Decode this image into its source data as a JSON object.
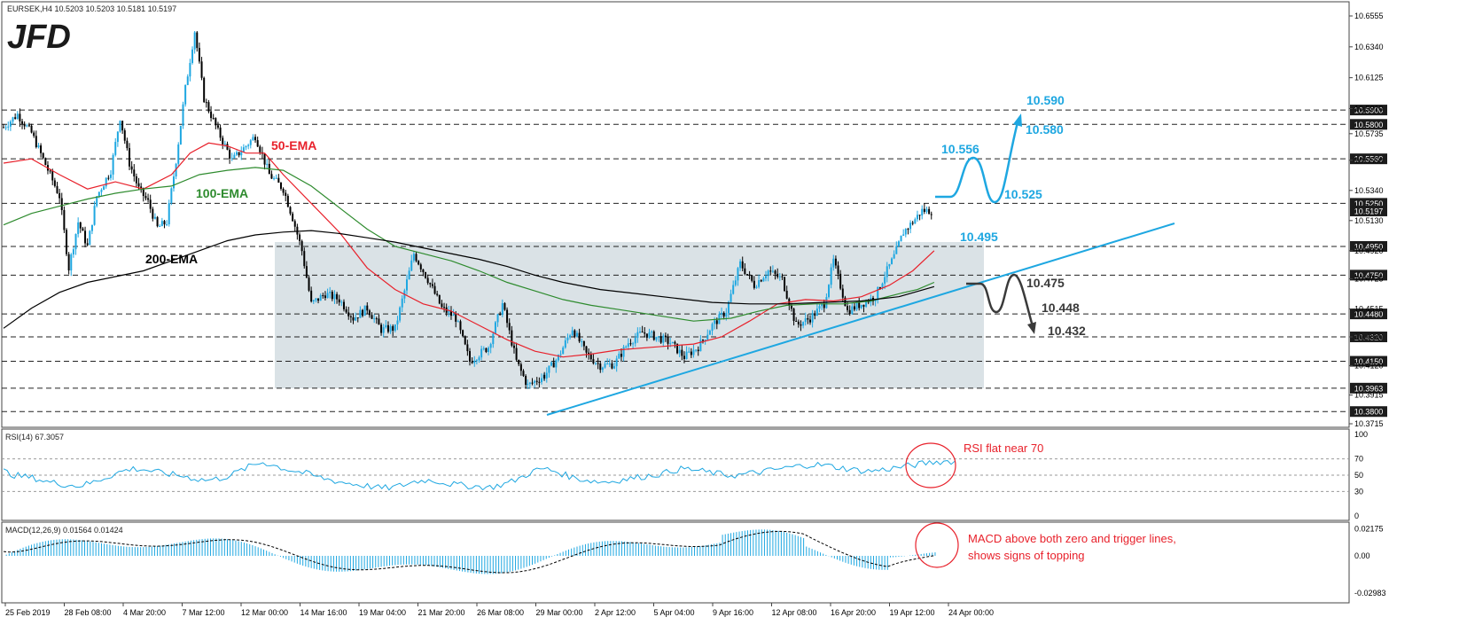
{
  "chart_data": {
    "type": "line",
    "title": "EURSEK,H4 10.5203 10.5203 10.5181 10.5197",
    "logo": "JFD",
    "x_tick_labels": [
      "25 Feb 2019",
      "28 Feb 08:00",
      "4 Mar 20:00",
      "7 Mar 12:00",
      "12 Mar 00:00",
      "14 Mar 16:00",
      "19 Mar 04:00",
      "21 Mar 20:00",
      "26 Mar 08:00",
      "29 Mar 00:00",
      "2 Apr 12:00",
      "5 Apr 04:00",
      "9 Apr 16:00",
      "12 Apr 08:00",
      "16 Apr 20:00",
      "19 Apr 12:00",
      "24 Apr 00:00"
    ],
    "price_axis_ticks": [
      "10.6555",
      "10.6340",
      "10.6125",
      "10.5910",
      "10.5735",
      "10.5550",
      "10.5340",
      "10.5130",
      "10.4920",
      "10.4725",
      "10.4515",
      "10.4320",
      "10.4120",
      "10.3915",
      "10.3715"
    ],
    "ylim": [
      10.3715,
      10.6555
    ],
    "level_badges": [
      "10.5900",
      "10.5800",
      "10.5560",
      "10.5250",
      "10.5197",
      "10.4950",
      "10.4750",
      "10.4480",
      "10.4320",
      "10.4150",
      "10.3963",
      "10.3800"
    ],
    "price_series": [
      [
        0,
        10.578
      ],
      [
        15,
        10.587
      ],
      [
        30,
        10.574
      ],
      [
        45,
        10.552
      ],
      [
        60,
        10.53
      ],
      [
        70,
        10.48
      ],
      [
        80,
        10.512
      ],
      [
        90,
        10.495
      ],
      [
        100,
        10.53
      ],
      [
        115,
        10.548
      ],
      [
        125,
        10.585
      ],
      [
        135,
        10.553
      ],
      [
        145,
        10.535
      ],
      [
        155,
        10.526
      ],
      [
        165,
        10.508
      ],
      [
        175,
        10.512
      ],
      [
        185,
        10.555
      ],
      [
        195,
        10.605
      ],
      [
        205,
        10.645
      ],
      [
        215,
        10.598
      ],
      [
        230,
        10.575
      ],
      [
        245,
        10.555
      ],
      [
        260,
        10.565
      ],
      [
        270,
        10.572
      ],
      [
        285,
        10.545
      ],
      [
        300,
        10.535
      ],
      [
        310,
        10.515
      ],
      [
        320,
        10.492
      ],
      [
        330,
        10.455
      ],
      [
        345,
        10.462
      ],
      [
        360,
        10.458
      ],
      [
        375,
        10.445
      ],
      [
        390,
        10.452
      ],
      [
        405,
        10.437
      ],
      [
        420,
        10.438
      ],
      [
        440,
        10.49
      ],
      [
        455,
        10.472
      ],
      [
        470,
        10.452
      ],
      [
        485,
        10.445
      ],
      [
        500,
        10.415
      ],
      [
        520,
        10.425
      ],
      [
        535,
        10.455
      ],
      [
        550,
        10.415
      ],
      [
        562,
        10.398
      ],
      [
        580,
        10.405
      ],
      [
        595,
        10.418
      ],
      [
        610,
        10.438
      ],
      [
        625,
        10.42
      ],
      [
        640,
        10.412
      ],
      [
        655,
        10.413
      ],
      [
        670,
        10.428
      ],
      [
        685,
        10.435
      ],
      [
        700,
        10.432
      ],
      [
        715,
        10.428
      ],
      [
        730,
        10.418
      ],
      [
        745,
        10.425
      ],
      [
        760,
        10.44
      ],
      [
        775,
        10.45
      ],
      [
        790,
        10.483
      ],
      [
        805,
        10.468
      ],
      [
        820,
        10.478
      ],
      [
        835,
        10.472
      ],
      [
        850,
        10.44
      ],
      [
        865,
        10.445
      ],
      [
        880,
        10.455
      ],
      [
        890,
        10.485
      ],
      [
        905,
        10.45
      ],
      [
        920,
        10.455
      ],
      [
        935,
        10.46
      ],
      [
        945,
        10.475
      ],
      [
        955,
        10.488
      ],
      [
        965,
        10.505
      ],
      [
        975,
        10.512
      ],
      [
        985,
        10.52
      ],
      [
        997,
        10.5197
      ]
    ],
    "series": [
      {
        "name": "50-EMA",
        "color": "#e8212b",
        "points": [
          [
            0,
            10.553
          ],
          [
            30,
            10.556
          ],
          [
            60,
            10.545
          ],
          [
            90,
            10.535
          ],
          [
            120,
            10.54
          ],
          [
            150,
            10.535
          ],
          [
            180,
            10.545
          ],
          [
            200,
            10.56
          ],
          [
            220,
            10.567
          ],
          [
            240,
            10.565
          ],
          [
            260,
            10.56
          ],
          [
            280,
            10.56
          ],
          [
            300,
            10.545
          ],
          [
            330,
            10.525
          ],
          [
            360,
            10.505
          ],
          [
            390,
            10.48
          ],
          [
            420,
            10.465
          ],
          [
            450,
            10.455
          ],
          [
            480,
            10.45
          ],
          [
            510,
            10.44
          ],
          [
            540,
            10.43
          ],
          [
            570,
            10.422
          ],
          [
            600,
            10.418
          ],
          [
            630,
            10.42
          ],
          [
            660,
            10.423
          ],
          [
            700,
            10.425
          ],
          [
            740,
            10.427
          ],
          [
            770,
            10.432
          ],
          [
            800,
            10.443
          ],
          [
            830,
            10.455
          ],
          [
            860,
            10.458
          ],
          [
            890,
            10.457
          ],
          [
            920,
            10.46
          ],
          [
            950,
            10.468
          ],
          [
            975,
            10.478
          ],
          [
            998,
            10.492
          ]
        ]
      },
      {
        "name": "100-EMA",
        "color": "#2e8b2e",
        "points": [
          [
            0,
            10.51
          ],
          [
            30,
            10.518
          ],
          [
            60,
            10.523
          ],
          [
            90,
            10.528
          ],
          [
            120,
            10.532
          ],
          [
            150,
            10.535
          ],
          [
            180,
            10.537
          ],
          [
            210,
            10.545
          ],
          [
            240,
            10.548
          ],
          [
            270,
            10.55
          ],
          [
            300,
            10.548
          ],
          [
            330,
            10.537
          ],
          [
            360,
            10.522
          ],
          [
            390,
            10.507
          ],
          [
            420,
            10.495
          ],
          [
            450,
            10.49
          ],
          [
            480,
            10.485
          ],
          [
            510,
            10.478
          ],
          [
            540,
            10.47
          ],
          [
            570,
            10.464
          ],
          [
            600,
            10.458
          ],
          [
            630,
            10.454
          ],
          [
            660,
            10.451
          ],
          [
            700,
            10.447
          ],
          [
            740,
            10.443
          ],
          [
            780,
            10.445
          ],
          [
            810,
            10.45
          ],
          [
            840,
            10.454
          ],
          [
            870,
            10.455
          ],
          [
            900,
            10.455
          ],
          [
            930,
            10.457
          ],
          [
            960,
            10.462
          ],
          [
            980,
            10.465
          ],
          [
            998,
            10.47
          ]
        ]
      },
      {
        "name": "200-EMA",
        "color": "#000000",
        "points": [
          [
            0,
            10.438
          ],
          [
            30,
            10.452
          ],
          [
            60,
            10.463
          ],
          [
            90,
            10.47
          ],
          [
            120,
            10.474
          ],
          [
            150,
            10.478
          ],
          [
            180,
            10.485
          ],
          [
            210,
            10.492
          ],
          [
            240,
            10.499
          ],
          [
            270,
            10.503
          ],
          [
            300,
            10.505
          ],
          [
            330,
            10.506
          ],
          [
            360,
            10.504
          ],
          [
            390,
            10.501
          ],
          [
            420,
            10.498
          ],
          [
            450,
            10.494
          ],
          [
            480,
            10.49
          ],
          [
            510,
            10.486
          ],
          [
            540,
            10.481
          ],
          [
            570,
            10.475
          ],
          [
            600,
            10.47
          ],
          [
            640,
            10.465
          ],
          [
            680,
            10.462
          ],
          [
            720,
            10.459
          ],
          [
            760,
            10.456
          ],
          [
            800,
            10.455
          ],
          [
            840,
            10.455
          ],
          [
            880,
            10.456
          ],
          [
            920,
            10.457
          ],
          [
            960,
            10.46
          ],
          [
            998,
            10.467
          ]
        ]
      }
    ],
    "ema_labels": [
      "50-EMA",
      "100-EMA",
      "200-EMA"
    ],
    "scenario_labels": {
      "up": [
        "10.590",
        "10.580",
        "10.556",
        "10.525",
        "10.495"
      ],
      "down": [
        "10.475",
        "10.448",
        "10.432"
      ]
    },
    "rsi": {
      "title": "RSI(14) 67.3057",
      "ticks": [
        "100",
        "70",
        "50",
        "30",
        "0"
      ],
      "values": [
        55,
        50,
        48,
        46,
        42,
        40,
        38,
        37,
        40,
        45,
        50,
        55,
        58,
        57,
        54,
        52,
        50,
        48,
        45,
        44,
        46,
        50,
        56,
        62,
        66,
        62,
        58,
        55,
        52,
        48,
        45,
        42,
        40,
        38,
        36,
        34,
        35,
        38,
        42,
        44,
        43,
        40,
        38,
        37,
        36,
        35,
        38,
        42,
        48,
        55,
        58,
        55,
        50,
        46,
        44,
        42,
        42,
        44,
        46,
        48,
        50,
        52,
        56,
        58,
        56,
        54,
        52,
        50,
        50,
        52,
        54,
        56,
        58,
        60,
        62,
        63,
        62,
        60,
        58,
        56,
        55,
        56,
        58,
        60,
        62,
        64,
        66,
        67,
        67
      ]
    },
    "macd": {
      "title": "MACD(12,26,9) 0.01564 0.01424",
      "ticks": [
        "0.02175",
        "0.00",
        "-0.02983"
      ]
    },
    "notes": {
      "rsi": "RSI flat near 70",
      "macd_line1": "MACD above both zero and trigger lines,",
      "macd_line2": "shows signs of topping"
    },
    "colors": {
      "bull": "#1ea7e1",
      "bear": "#000000",
      "support": "#1ea7e1",
      "box": "#ced8dd",
      "note": "#e8212b"
    }
  }
}
